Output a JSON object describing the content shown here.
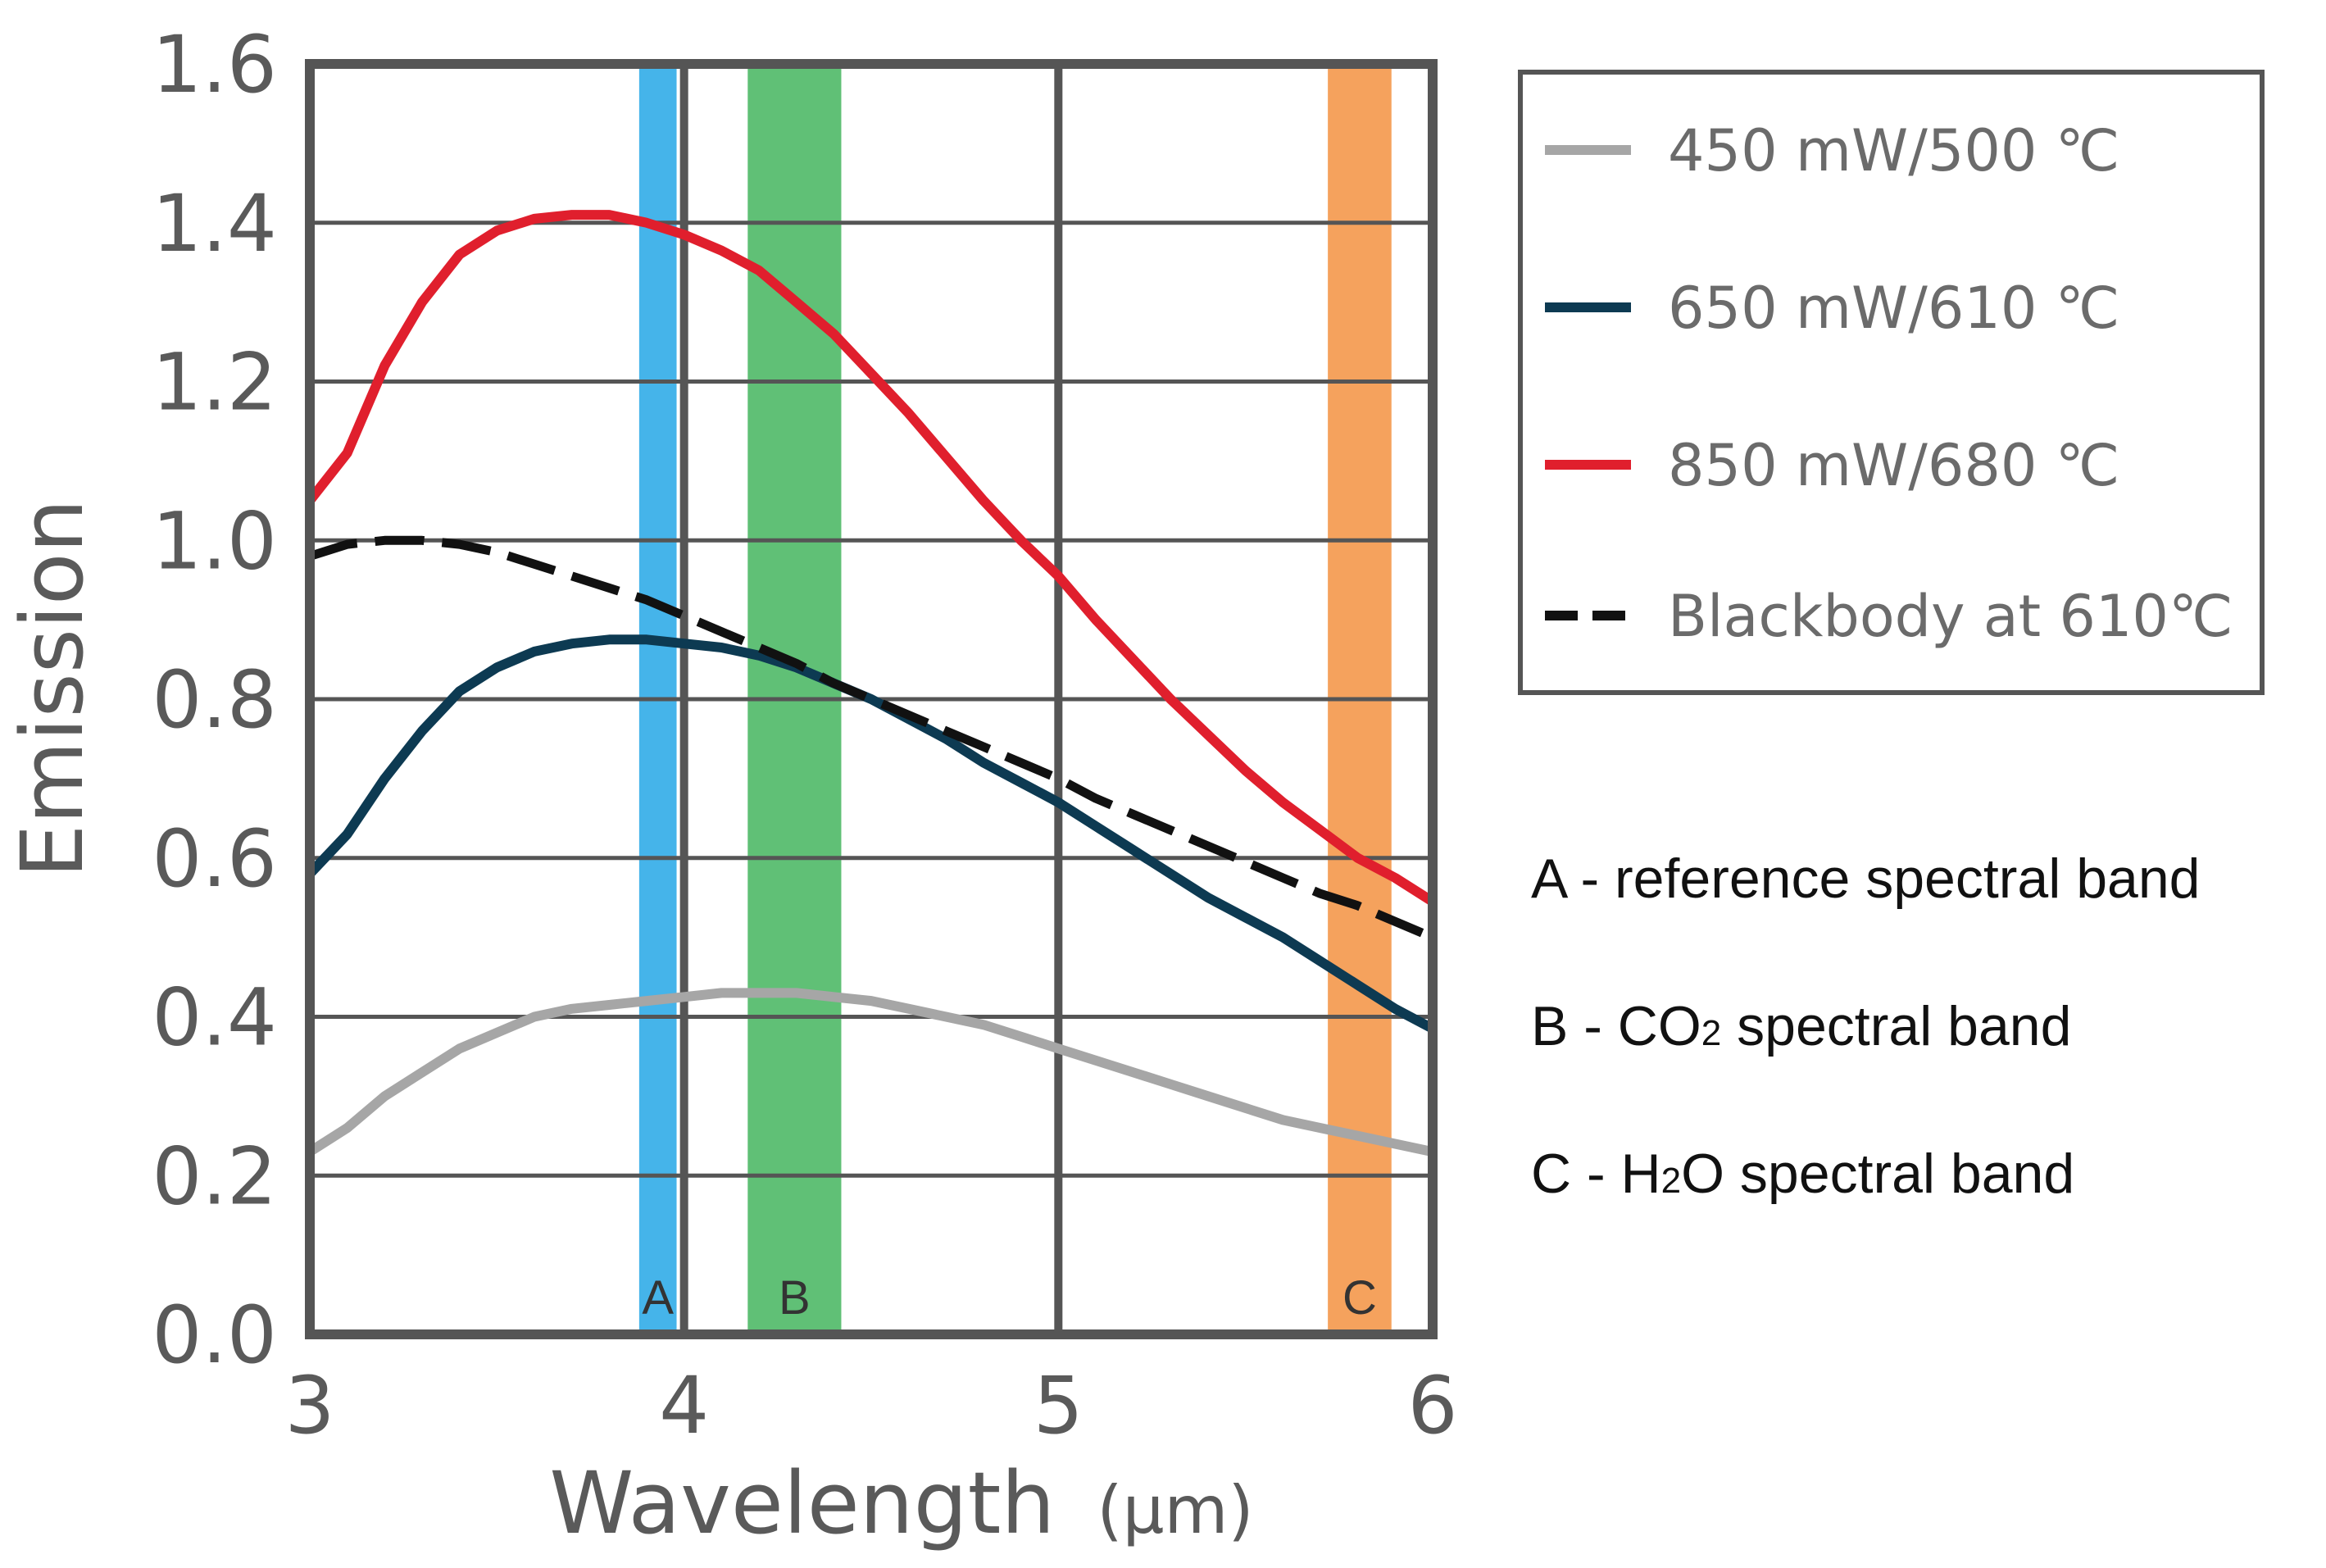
{
  "chart_data": {
    "type": "line",
    "xlabel": "Wavelength",
    "xlabel_unit": "(μm)",
    "ylabel": "Emission",
    "xlim": [
      3,
      6
    ],
    "ylim": [
      0,
      1.6
    ],
    "x_ticks": [
      "3",
      "4",
      "5",
      "6"
    ],
    "y_ticks": [
      "0.0",
      "0.2",
      "0.4",
      "0.6",
      "0.8",
      "1.0",
      "1.2",
      "1.4",
      "1.6"
    ],
    "grid": true,
    "legend_position": "top-right outside",
    "series": [
      {
        "name": "450 mW/500 ℃",
        "color": "#a6a6a6",
        "dash": "solid",
        "x": [
          3.0,
          3.1,
          3.2,
          3.3,
          3.4,
          3.5,
          3.6,
          3.7,
          3.8,
          3.9,
          4.0,
          4.1,
          4.2,
          4.3,
          4.4,
          4.5,
          4.6,
          4.7,
          4.8,
          4.9,
          5.0,
          5.1,
          5.2,
          5.3,
          5.4,
          5.5,
          5.6,
          5.7,
          5.8,
          5.9,
          6.0
        ],
        "y": [
          0.23,
          0.26,
          0.3,
          0.33,
          0.36,
          0.38,
          0.4,
          0.41,
          0.415,
          0.42,
          0.425,
          0.43,
          0.43,
          0.43,
          0.425,
          0.42,
          0.41,
          0.4,
          0.39,
          0.375,
          0.36,
          0.345,
          0.33,
          0.315,
          0.3,
          0.285,
          0.27,
          0.26,
          0.25,
          0.24,
          0.23
        ]
      },
      {
        "name": "650 mW/610 ℃",
        "color": "#0d3a52",
        "dash": "solid",
        "x": [
          3.0,
          3.1,
          3.2,
          3.3,
          3.4,
          3.5,
          3.6,
          3.7,
          3.8,
          3.9,
          4.0,
          4.1,
          4.2,
          4.3,
          4.4,
          4.5,
          4.6,
          4.7,
          4.8,
          4.9,
          5.0,
          5.1,
          5.2,
          5.3,
          5.4,
          5.5,
          5.6,
          5.7,
          5.8,
          5.9,
          6.0
        ],
        "y": [
          0.58,
          0.63,
          0.7,
          0.76,
          0.81,
          0.84,
          0.86,
          0.87,
          0.875,
          0.875,
          0.87,
          0.865,
          0.855,
          0.84,
          0.82,
          0.8,
          0.775,
          0.75,
          0.72,
          0.695,
          0.67,
          0.64,
          0.61,
          0.58,
          0.55,
          0.525,
          0.5,
          0.47,
          0.44,
          0.41,
          0.385
        ]
      },
      {
        "name": "850 mW/680 ℃",
        "color": "#e01f2d",
        "dash": "solid",
        "x": [
          3.0,
          3.1,
          3.2,
          3.3,
          3.4,
          3.5,
          3.6,
          3.7,
          3.8,
          3.9,
          4.0,
          4.1,
          4.2,
          4.3,
          4.4,
          4.5,
          4.6,
          4.7,
          4.8,
          4.9,
          5.0,
          5.1,
          5.2,
          5.3,
          5.4,
          5.5,
          5.6,
          5.7,
          5.8,
          5.9,
          6.0
        ],
        "y": [
          1.05,
          1.11,
          1.22,
          1.3,
          1.36,
          1.39,
          1.405,
          1.41,
          1.41,
          1.4,
          1.385,
          1.365,
          1.34,
          1.3,
          1.26,
          1.21,
          1.16,
          1.105,
          1.05,
          1.0,
          0.955,
          0.9,
          0.85,
          0.8,
          0.755,
          0.71,
          0.67,
          0.635,
          0.6,
          0.575,
          0.545
        ]
      },
      {
        "name": "Blackbody at 610℃",
        "color": "#111111",
        "dash": "dashed",
        "x": [
          3.0,
          3.1,
          3.2,
          3.3,
          3.4,
          3.5,
          3.6,
          3.7,
          3.8,
          3.9,
          4.0,
          4.1,
          4.2,
          4.3,
          4.4,
          4.5,
          4.6,
          4.7,
          4.8,
          4.9,
          5.0,
          5.1,
          5.2,
          5.3,
          5.4,
          5.5,
          5.6,
          5.7,
          5.8,
          5.9,
          6.0
        ],
        "y": [
          0.98,
          0.995,
          1.0,
          1.0,
          0.995,
          0.985,
          0.97,
          0.955,
          0.94,
          0.925,
          0.905,
          0.885,
          0.865,
          0.845,
          0.82,
          0.8,
          0.78,
          0.76,
          0.74,
          0.72,
          0.7,
          0.675,
          0.655,
          0.635,
          0.615,
          0.595,
          0.575,
          0.555,
          0.54,
          0.52,
          0.5
        ]
      }
    ],
    "bands": [
      {
        "id": "A",
        "x_start": 3.88,
        "x_end": 3.98,
        "color": "#35aee8"
      },
      {
        "id": "B",
        "x_start": 4.17,
        "x_end": 4.42,
        "color": "#52bb6a"
      },
      {
        "id": "C",
        "x_start": 5.72,
        "x_end": 5.89,
        "color": "#f49a4f"
      }
    ],
    "band_notes": [
      {
        "label": "A - reference spectral band"
      },
      {
        "label": "B - CO",
        "sub": "2",
        "rest": " spectral band"
      },
      {
        "label": "C - H",
        "sub": "2",
        "rest": "O spectral band"
      }
    ]
  }
}
